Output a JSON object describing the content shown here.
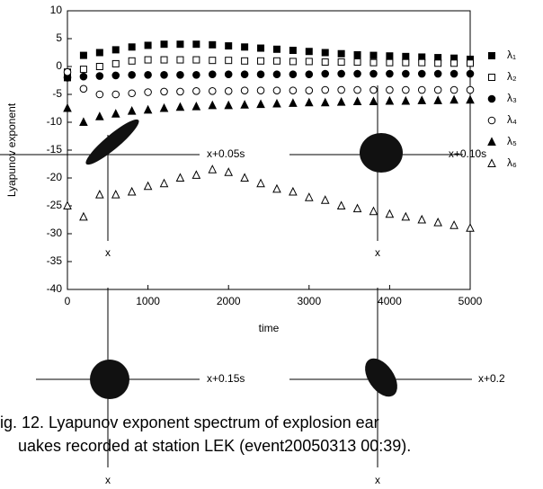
{
  "chart_data": {
    "type": "scatter",
    "x_label": "time",
    "y_label": "Lyapunov exponent",
    "xlim": [
      0,
      5000
    ],
    "ylim": [
      -40,
      10
    ],
    "xticks": [
      0,
      1000,
      2000,
      3000,
      4000,
      5000
    ],
    "yticks": [
      -40,
      -35,
      -30,
      -25,
      -20,
      -15,
      -10,
      -5,
      0,
      5,
      10
    ],
    "x": [
      0,
      200,
      400,
      600,
      800,
      1000,
      1200,
      1400,
      1600,
      1800,
      2000,
      2200,
      2400,
      2600,
      2800,
      3000,
      3200,
      3400,
      3600,
      3800,
      4000,
      4200,
      4400,
      4600,
      4800,
      5000
    ],
    "series": [
      {
        "name": "λ₁",
        "marker": "square",
        "filled": true,
        "color": "#000000",
        "values": [
          -1,
          2,
          2.5,
          3,
          3.5,
          3.8,
          4,
          4,
          4,
          3.9,
          3.7,
          3.5,
          3.3,
          3.1,
          2.9,
          2.7,
          2.5,
          2.3,
          2.1,
          2,
          1.9,
          1.8,
          1.7,
          1.6,
          1.5,
          1.3
        ]
      },
      {
        "name": "λ₂",
        "marker": "square",
        "filled": false,
        "color": "#000000",
        "values": [
          -2,
          -0.5,
          0,
          0.5,
          1,
          1.2,
          1.2,
          1.2,
          1.2,
          1.1,
          1.1,
          1,
          1,
          1,
          0.9,
          0.9,
          0.8,
          0.8,
          0.8,
          0.7,
          0.7,
          0.7,
          0.7,
          0.6,
          0.6,
          0.6
        ]
      },
      {
        "name": "λ₃",
        "marker": "circle",
        "filled": true,
        "color": "#000000",
        "values": [
          -2,
          -1.8,
          -1.7,
          -1.6,
          -1.5,
          -1.5,
          -1.5,
          -1.5,
          -1.5,
          -1.4,
          -1.4,
          -1.4,
          -1.4,
          -1.4,
          -1.4,
          -1.4,
          -1.3,
          -1.3,
          -1.3,
          -1.3,
          -1.3,
          -1.3,
          -1.3,
          -1.3,
          -1.3,
          -1.3
        ]
      },
      {
        "name": "λ₄",
        "marker": "circle",
        "filled": false,
        "color": "#000000",
        "values": [
          -1,
          -4,
          -5,
          -5,
          -4.8,
          -4.6,
          -4.5,
          -4.5,
          -4.4,
          -4.4,
          -4.4,
          -4.3,
          -4.3,
          -4.3,
          -4.3,
          -4.3,
          -4.2,
          -4.2,
          -4.2,
          -4.2,
          -4.2,
          -4.2,
          -4.2,
          -4.2,
          -4.2,
          -4.2
        ]
      },
      {
        "name": "λ₅",
        "marker": "triangle",
        "filled": true,
        "color": "#000000",
        "values": [
          -7.5,
          -10,
          -9,
          -8.5,
          -8,
          -7.8,
          -7.5,
          -7.3,
          -7.2,
          -7,
          -7,
          -6.9,
          -6.8,
          -6.7,
          -6.6,
          -6.5,
          -6.5,
          -6.4,
          -6.3,
          -6.3,
          -6.2,
          -6.2,
          -6.1,
          -6.1,
          -6,
          -6
        ]
      },
      {
        "name": "λ₆",
        "marker": "triangle",
        "filled": false,
        "color": "#000000",
        "values": [
          -25,
          -27,
          -23,
          -23,
          -22.5,
          -21.5,
          -21,
          -20,
          -19.5,
          -18.5,
          -19,
          -20,
          -21,
          -22,
          -22.5,
          -23.5,
          -24,
          -25,
          -25.5,
          -26,
          -26.5,
          -27,
          -27.5,
          -28,
          -28.5,
          -29
        ]
      }
    ],
    "annotations": [
      "x+0.05s",
      "x+0.10s",
      "x+0.15s",
      "x+0.2",
      "x",
      "x",
      "x",
      "x"
    ],
    "caption": [
      "ig. 12. Lyapunov exponent spectrum of explosion ear",
      "uakes recorded at station LEK (event20050313 00:39)."
    ]
  }
}
